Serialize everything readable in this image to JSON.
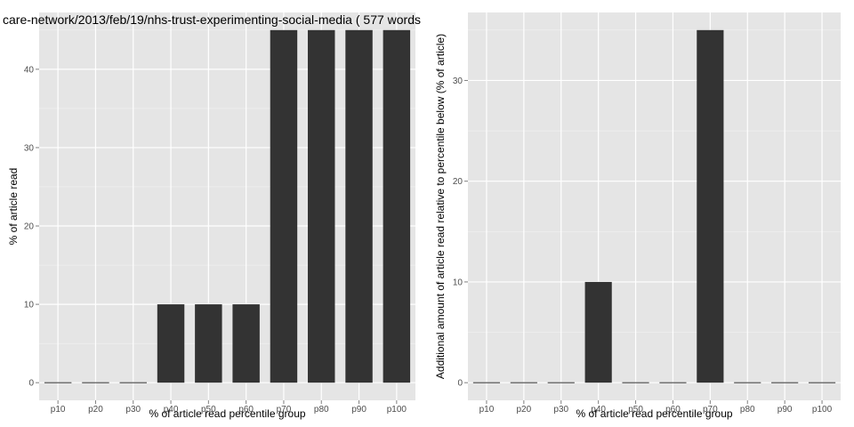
{
  "colors": {
    "panel_bg": "#e5e5e5",
    "grid_major": "#ffffff",
    "grid_minor": "#f2f2f2",
    "bar_fill": "#333333",
    "tick_text": "#4d4d4d"
  },
  "chart_data": [
    {
      "type": "bar",
      "title": "care-network/2013/feb/19/nhs-trust-experimenting-social-media ( 577 words",
      "xlabel": "% of article read percentile group",
      "ylabel": "% of article read",
      "categories": [
        "p10",
        "p20",
        "p30",
        "p40",
        "p50",
        "p60",
        "p70",
        "p80",
        "p90",
        "p100"
      ],
      "values": [
        0,
        0,
        0,
        10,
        10,
        10,
        45,
        45,
        45,
        45
      ],
      "ylim": [
        -2.25,
        47.25
      ],
      "yticks": [
        0,
        10,
        20,
        30,
        40
      ],
      "grid": true
    },
    {
      "type": "bar",
      "title": "",
      "xlabel": "% of article read percentile group",
      "ylabel": "Additional amount of article read relative to percentile below (% of article)",
      "categories": [
        "p10",
        "p20",
        "p30",
        "p40",
        "p50",
        "p60",
        "p70",
        "p80",
        "p90",
        "p100"
      ],
      "values": [
        0,
        0,
        0,
        10,
        0,
        0,
        35,
        0,
        0,
        0
      ],
      "ylim": [
        -1.75,
        36.75
      ],
      "yticks": [
        0,
        10,
        20,
        30
      ],
      "grid": true
    }
  ]
}
